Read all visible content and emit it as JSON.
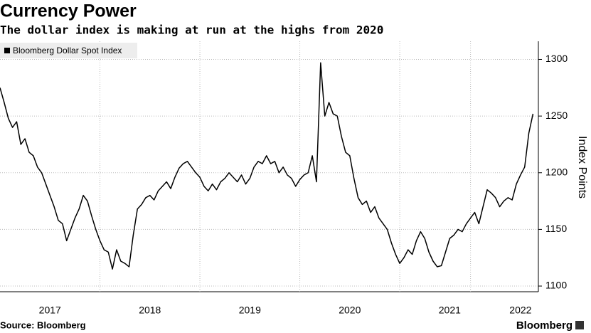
{
  "chart_data": {
    "type": "line",
    "title": "Currency Power",
    "subtitle": "The dollar index is making at run at the highs from 2020",
    "y_label": "Index Points",
    "source": "Source: Bloomberg",
    "brand": "Bloomberg",
    "categories": [
      null,
      null,
      null,
      null,
      null,
      null,
      null,
      null,
      null,
      null,
      null,
      null,
      "2017",
      null,
      null,
      null,
      null,
      null,
      null,
      null,
      null,
      null,
      null,
      null,
      null,
      null,
      null,
      null,
      null,
      null,
      null,
      null,
      null,
      null,
      null,
      null,
      "2018",
      null,
      null,
      null,
      null,
      null,
      null,
      null,
      null,
      null,
      null,
      null,
      null,
      null,
      null,
      null,
      null,
      null,
      null,
      null,
      null,
      null,
      null,
      null,
      "2019",
      null,
      null,
      null,
      null,
      null,
      null,
      null,
      null,
      null,
      null,
      null,
      null,
      null,
      null,
      null,
      null,
      null,
      null,
      null,
      null,
      null,
      null,
      null,
      "2020",
      null,
      null,
      null,
      null,
      null,
      null,
      null,
      null,
      null,
      null,
      null,
      null,
      null,
      null,
      null,
      null,
      null,
      null,
      null,
      null,
      null,
      null,
      null,
      "2021",
      null,
      null,
      null,
      null,
      null,
      null,
      null,
      null,
      null,
      null,
      null,
      null,
      null,
      null,
      null,
      null,
      "2022",
      null,
      null,
      null
    ],
    "series": [
      {
        "name": "Bloomberg Dollar Spot Index",
        "color": "#000000",
        "values": [
          1275,
          1262,
          1248,
          1240,
          1245,
          1225,
          1230,
          1218,
          1215,
          1205,
          1200,
          1190,
          1180,
          1170,
          1158,
          1155,
          1140,
          1150,
          1160,
          1168,
          1180,
          1175,
          1162,
          1150,
          1140,
          1132,
          1130,
          1115,
          1132,
          1122,
          1120,
          1117,
          1145,
          1168,
          1172,
          1178,
          1180,
          1176,
          1184,
          1188,
          1192,
          1186,
          1196,
          1204,
          1208,
          1210,
          1205,
          1200,
          1196,
          1188,
          1184,
          1190,
          1185,
          1192,
          1195,
          1200,
          1196,
          1192,
          1198,
          1190,
          1195,
          1205,
          1210,
          1208,
          1215,
          1208,
          1210,
          1200,
          1205,
          1198,
          1195,
          1188,
          1194,
          1198,
          1200,
          1215,
          1192,
          1297,
          1250,
          1262,
          1252,
          1250,
          1232,
          1218,
          1215,
          1195,
          1178,
          1172,
          1175,
          1165,
          1170,
          1160,
          1155,
          1150,
          1138,
          1128,
          1120,
          1125,
          1132,
          1128,
          1140,
          1148,
          1142,
          1130,
          1122,
          1117,
          1118,
          1130,
          1142,
          1145,
          1150,
          1148,
          1155,
          1160,
          1165,
          1155,
          1170,
          1185,
          1182,
          1178,
          1170,
          1175,
          1178,
          1176,
          1190,
          1198,
          1205,
          1235,
          1252
        ]
      }
    ],
    "ylim": [
      1095,
      1316
    ],
    "yticks": [
      1100,
      1150,
      1200,
      1250,
      1300
    ],
    "grid": true,
    "legend": "top-left"
  }
}
